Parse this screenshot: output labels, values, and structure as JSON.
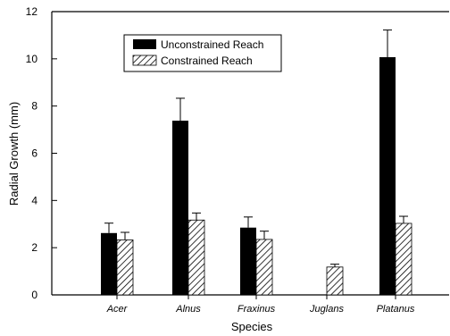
{
  "chart_data": {
    "type": "bar",
    "xlabel": "Species",
    "ylabel": "Radial Growth (mm)",
    "categories": [
      "Acer",
      "Alnus",
      "Fraxinus",
      "Juglans",
      "Platanus"
    ],
    "ylim": [
      0,
      12
    ],
    "yticks": [
      0,
      2,
      4,
      6,
      8,
      10,
      12
    ],
    "legend_position": "top-left",
    "series": [
      {
        "name": "Unconstrained Reach",
        "fill": "solid-black",
        "values": [
          2.62,
          7.38,
          2.85,
          null,
          10.07
        ],
        "errors": [
          0.42,
          0.95,
          0.45,
          null,
          1.15
        ]
      },
      {
        "name": "Constrained Reach",
        "fill": "diagonal-hatch",
        "values": [
          2.33,
          3.17,
          2.35,
          1.18,
          3.03
        ],
        "errors": [
          0.32,
          0.3,
          0.35,
          0.12,
          0.3
        ]
      }
    ]
  },
  "colors": {
    "bar_solid": "#000000",
    "hatch": "#000000",
    "background": "#ffffff"
  }
}
